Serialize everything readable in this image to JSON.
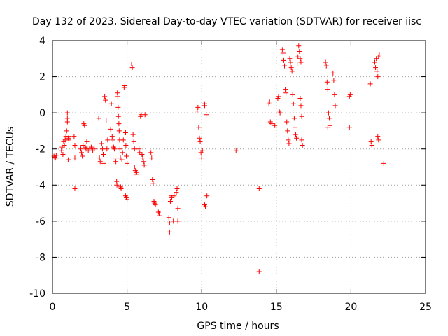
{
  "chart_data": {
    "type": "scatter",
    "title": "Day 132 of 2023, Sidereal Day-to-day VTEC variation (SDTVAR) for receiver iisc",
    "xlabel": "GPS time / hours",
    "ylabel": "SDTVAR / TECUs",
    "xlim": [
      0,
      25
    ],
    "ylim": [
      -10,
      4
    ],
    "xticks": [
      0,
      5,
      10,
      15,
      20,
      25
    ],
    "yticks": [
      -10,
      -8,
      -6,
      -4,
      -2,
      0,
      2,
      4
    ],
    "xtick_labels": [
      "0",
      "5",
      "10",
      "15",
      "20",
      "25"
    ],
    "ytick_labels": [
      "-10",
      "-8",
      "-6",
      "-4",
      "-2",
      "0",
      "2",
      "4"
    ],
    "grid": true,
    "marker": "+",
    "color": "#ff0000",
    "series": [
      {
        "name": "SDTVAR",
        "points": [
          [
            0.1,
            -2.4
          ],
          [
            0.15,
            -2.45
          ],
          [
            0.2,
            -2.5
          ],
          [
            0.25,
            -2.35
          ],
          [
            0.3,
            -2.5
          ],
          [
            0.6,
            -2.1
          ],
          [
            0.65,
            -1.9
          ],
          [
            0.7,
            -2.3
          ],
          [
            0.75,
            -1.6
          ],
          [
            0.8,
            -1.8
          ],
          [
            0.85,
            -1.5
          ],
          [
            0.9,
            -1.3
          ],
          [
            0.95,
            -1.0
          ],
          [
            1.0,
            -0.3
          ],
          [
            1.0,
            0.0
          ],
          [
            1.0,
            -0.5
          ],
          [
            1.05,
            -1.4
          ],
          [
            1.05,
            -2.6
          ],
          [
            1.1,
            -1.3
          ],
          [
            1.1,
            -1.5
          ],
          [
            1.45,
            -1.3
          ],
          [
            1.5,
            -1.8
          ],
          [
            1.5,
            -2.5
          ],
          [
            1.5,
            -4.2
          ],
          [
            1.9,
            -2.0
          ],
          [
            1.95,
            -2.2
          ],
          [
            2.0,
            -2.4
          ],
          [
            2.05,
            -1.8
          ],
          [
            2.1,
            -0.6
          ],
          [
            2.15,
            -0.7
          ],
          [
            2.2,
            -1.9
          ],
          [
            2.25,
            -2.0
          ],
          [
            2.3,
            -1.6
          ],
          [
            2.4,
            -2.1
          ],
          [
            2.5,
            -2.0
          ],
          [
            2.6,
            -1.9
          ],
          [
            2.7,
            -2.1
          ],
          [
            2.8,
            -2.0
          ],
          [
            3.1,
            -0.3
          ],
          [
            3.15,
            -2.5
          ],
          [
            3.2,
            -2.7
          ],
          [
            3.3,
            -1.7
          ],
          [
            3.35,
            -2.0
          ],
          [
            3.4,
            -2.3
          ],
          [
            3.45,
            -2.8
          ],
          [
            3.5,
            0.9
          ],
          [
            3.55,
            0.7
          ],
          [
            3.6,
            -0.4
          ],
          [
            3.65,
            -2.0
          ],
          [
            3.7,
            -1.5
          ],
          [
            3.9,
            -0.9
          ],
          [
            3.95,
            0.5
          ],
          [
            4.0,
            -1.3
          ],
          [
            4.05,
            -1.5
          ],
          [
            4.1,
            -1.9
          ],
          [
            4.15,
            -2.0
          ],
          [
            4.2,
            -2.5
          ],
          [
            4.25,
            -2.7
          ],
          [
            4.3,
            -3.8
          ],
          [
            4.32,
            -4.0
          ],
          [
            4.35,
            1.1
          ],
          [
            4.38,
            0.9
          ],
          [
            4.4,
            0.3
          ],
          [
            4.42,
            -0.2
          ],
          [
            4.45,
            -0.6
          ],
          [
            4.47,
            -1.0
          ],
          [
            4.5,
            -1.5
          ],
          [
            4.52,
            -2.0
          ],
          [
            4.55,
            -2.5
          ],
          [
            4.57,
            -4.1
          ],
          [
            4.6,
            -4.2
          ],
          [
            4.65,
            -2.6
          ],
          [
            4.7,
            -2.2
          ],
          [
            4.75,
            -1.5
          ],
          [
            4.8,
            1.4
          ],
          [
            4.85,
            1.5
          ],
          [
            4.9,
            -1.1
          ],
          [
            4.92,
            -1.8
          ],
          [
            4.95,
            -2.4
          ],
          [
            5.0,
            -2.8
          ],
          [
            4.9,
            -4.6
          ],
          [
            4.95,
            -4.7
          ],
          [
            5.0,
            -4.8
          ],
          [
            5.3,
            2.7
          ],
          [
            5.35,
            2.5
          ],
          [
            5.4,
            -1.2
          ],
          [
            5.45,
            -1.6
          ],
          [
            5.5,
            -2.0
          ],
          [
            5.5,
            -3.0
          ],
          [
            5.55,
            -3.2
          ],
          [
            5.6,
            -3.4
          ],
          [
            5.65,
            -3.3
          ],
          [
            5.8,
            -2.0
          ],
          [
            5.85,
            -2.2
          ],
          [
            5.9,
            -0.2
          ],
          [
            5.95,
            -0.1
          ],
          [
            6.0,
            -2.3
          ],
          [
            6.05,
            -2.5
          ],
          [
            6.1,
            -2.7
          ],
          [
            6.15,
            -2.9
          ],
          [
            6.2,
            -0.1
          ],
          [
            6.6,
            -2.2
          ],
          [
            6.65,
            -2.5
          ],
          [
            6.7,
            -3.7
          ],
          [
            6.75,
            -3.9
          ],
          [
            6.8,
            -4.9
          ],
          [
            6.85,
            -5.0
          ],
          [
            6.9,
            -5.1
          ],
          [
            7.1,
            -5.5
          ],
          [
            7.15,
            -5.6
          ],
          [
            7.2,
            -5.7
          ],
          [
            7.8,
            -5.8
          ],
          [
            7.85,
            -6.1
          ],
          [
            7.85,
            -6.6
          ],
          [
            7.9,
            -4.9
          ],
          [
            7.95,
            -4.6
          ],
          [
            8.0,
            -4.7
          ],
          [
            8.1,
            -6.0
          ],
          [
            8.15,
            -4.6
          ],
          [
            8.3,
            -4.4
          ],
          [
            8.35,
            -4.2
          ],
          [
            8.4,
            -5.3
          ],
          [
            8.4,
            -6.0
          ],
          [
            9.7,
            0.1
          ],
          [
            9.75,
            0.3
          ],
          [
            9.8,
            -0.8
          ],
          [
            9.85,
            -1.4
          ],
          [
            9.9,
            -1.6
          ],
          [
            9.95,
            -2.2
          ],
          [
            10.0,
            -2.5
          ],
          [
            10.05,
            -2.1
          ],
          [
            10.2,
            0.4
          ],
          [
            10.2,
            0.5
          ],
          [
            10.2,
            -5.1
          ],
          [
            10.25,
            -5.2
          ],
          [
            10.35,
            -4.6
          ],
          [
            10.3,
            -0.1
          ],
          [
            12.3,
            -2.1
          ],
          [
            13.85,
            -4.2
          ],
          [
            13.85,
            -8.8
          ],
          [
            14.5,
            0.5
          ],
          [
            14.55,
            0.6
          ],
          [
            14.6,
            -0.5
          ],
          [
            14.7,
            -0.6
          ],
          [
            14.9,
            -0.7
          ],
          [
            15.1,
            0.8
          ],
          [
            15.15,
            0.9
          ],
          [
            15.2,
            0.1
          ],
          [
            15.25,
            0.0
          ],
          [
            15.4,
            3.5
          ],
          [
            15.45,
            3.3
          ],
          [
            15.5,
            2.9
          ],
          [
            15.55,
            2.6
          ],
          [
            15.6,
            1.3
          ],
          [
            15.65,
            1.1
          ],
          [
            15.7,
            -0.5
          ],
          [
            15.75,
            -1.0
          ],
          [
            15.8,
            -1.5
          ],
          [
            15.85,
            -1.7
          ],
          [
            15.9,
            3.0
          ],
          [
            15.95,
            2.8
          ],
          [
            16.0,
            2.5
          ],
          [
            16.05,
            2.3
          ],
          [
            16.1,
            1.0
          ],
          [
            16.15,
            0.5
          ],
          [
            16.2,
            -0.3
          ],
          [
            16.25,
            -0.8
          ],
          [
            16.3,
            -1.2
          ],
          [
            16.35,
            -1.4
          ],
          [
            16.4,
            2.7
          ],
          [
            16.45,
            3.1
          ],
          [
            16.5,
            3.7
          ],
          [
            16.55,
            3.4
          ],
          [
            16.6,
            3.0
          ],
          [
            16.65,
            2.8
          ],
          [
            16.7,
            -1.5
          ],
          [
            16.75,
            -1.8
          ],
          [
            16.6,
            0.8
          ],
          [
            16.65,
            0.4
          ],
          [
            16.7,
            -0.2
          ],
          [
            18.3,
            2.8
          ],
          [
            18.35,
            2.6
          ],
          [
            18.4,
            1.7
          ],
          [
            18.45,
            1.3
          ],
          [
            18.5,
            0.0
          ],
          [
            18.55,
            -0.3
          ],
          [
            18.6,
            -0.7
          ],
          [
            18.45,
            -0.8
          ],
          [
            18.8,
            2.2
          ],
          [
            18.85,
            1.8
          ],
          [
            18.9,
            1.0
          ],
          [
            18.95,
            0.4
          ],
          [
            19.9,
            0.9
          ],
          [
            19.95,
            1.0
          ],
          [
            19.9,
            -0.8
          ],
          [
            21.3,
            1.6
          ],
          [
            21.35,
            -1.6
          ],
          [
            21.4,
            -1.8
          ],
          [
            21.6,
            2.8
          ],
          [
            21.65,
            2.5
          ],
          [
            21.7,
            3.0
          ],
          [
            21.75,
            2.3
          ],
          [
            21.8,
            2.0
          ],
          [
            21.85,
            3.1
          ],
          [
            21.9,
            3.2
          ],
          [
            21.8,
            -1.3
          ],
          [
            21.85,
            -1.5
          ],
          [
            22.2,
            -2.8
          ]
        ]
      }
    ]
  }
}
